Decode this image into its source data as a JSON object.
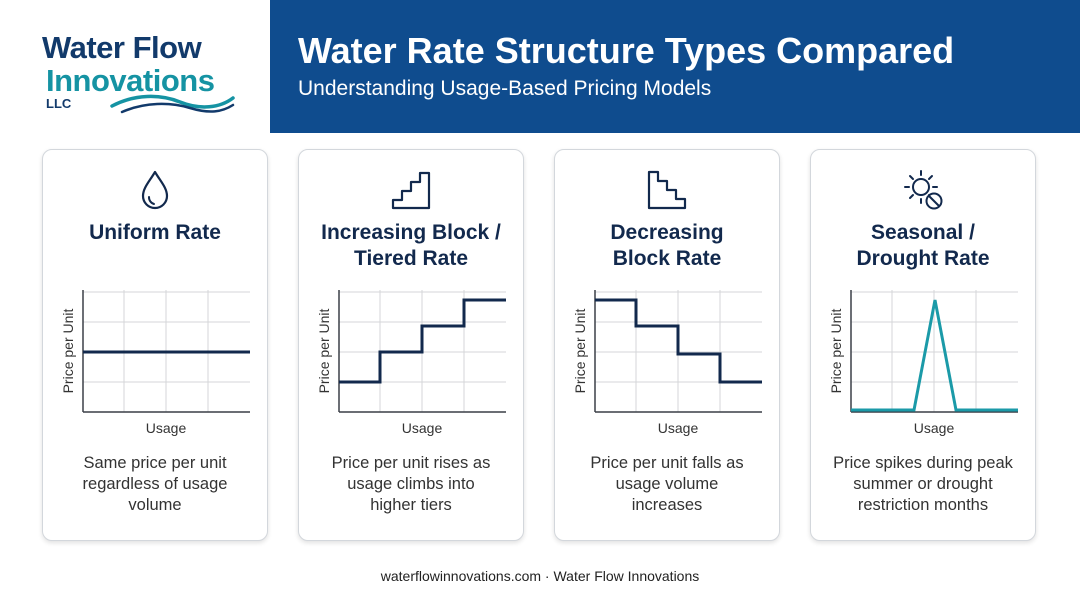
{
  "logo": {
    "line1": "Water Flow",
    "line2": "Innovations",
    "line3": "LLC"
  },
  "header": {
    "title": "Water Rate Structure Types Compared",
    "subtitle": "Understanding Usage-Based Pricing Models"
  },
  "colors": {
    "header_bg": "#0f4c8e",
    "navy": "#12294d",
    "teal": "#1b9aa8"
  },
  "cards": [
    {
      "icon": "water-drop-icon",
      "title": "Uniform Rate",
      "title_lines": [
        "Uniform Rate"
      ],
      "xlabel": "Usage",
      "ylabel": "Price per Unit",
      "desc": "Same price per unit regardless of usage volume",
      "desc_lines": [
        "Same price per unit",
        "regardless of usage",
        "volume"
      ]
    },
    {
      "icon": "staircase-up-icon",
      "title": "Increasing Block / Tiered Rate",
      "title_lines": [
        "Increasing Block /",
        "Tiered Rate"
      ],
      "xlabel": "Usage",
      "ylabel": "Price per Unit",
      "desc": "Price per unit rises as usage climbs into higher tiers",
      "desc_lines": [
        "Price per unit rises as",
        "usage climbs into",
        "higher tiers"
      ]
    },
    {
      "icon": "staircase-down-icon",
      "title": "Decreasing Block Rate",
      "title_lines": [
        "Decreasing",
        "Block Rate"
      ],
      "xlabel": "Usage",
      "ylabel": "Price per Unit",
      "desc": "Price per unit falls as usage volume increases",
      "desc_lines": [
        "Price per unit falls as",
        "usage volume",
        "increases"
      ]
    },
    {
      "icon": "sun-restricted-icon",
      "title": "Seasonal / Drought Rate",
      "title_lines": [
        "Seasonal /",
        "Drought Rate"
      ],
      "xlabel": "Usage",
      "ylabel": "Price per Unit",
      "desc": "Price spikes during peak summer or drought restriction months",
      "desc_lines": [
        "Price spikes during peak",
        "summer or drought",
        "restriction months"
      ]
    }
  ],
  "footer": "waterflowinnovations.com · Water Flow Innovations"
}
